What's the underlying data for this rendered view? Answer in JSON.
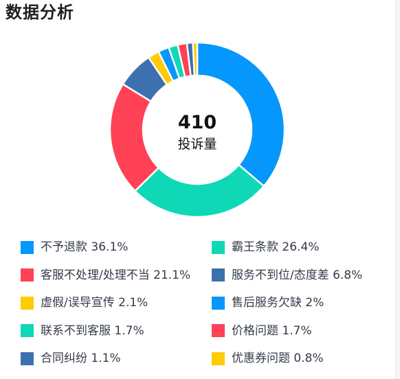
{
  "section": {
    "title": "数据分析"
  },
  "center": {
    "value": "410",
    "label": "投诉量"
  },
  "chart_data": {
    "type": "pie",
    "categories": [
      "不予退款",
      "霸王条款",
      "客服不处理/处理不当",
      "服务不到位/态度差",
      "虚假/误导宣传",
      "售后服务欠缺",
      "联系不到客服",
      "价格问题",
      "合同纠纷",
      "优惠券问题"
    ],
    "values": [
      36.1,
      26.4,
      21.1,
      6.8,
      2.1,
      2,
      1.7,
      1.7,
      1.1,
      0.8
    ],
    "colors": [
      "#0597fb",
      "#0fd8b6",
      "#ff4255",
      "#3d70ae",
      "#ffcb05",
      "#0597fb",
      "#0fd8b6",
      "#ff4255",
      "#3d70ae",
      "#ffcb05"
    ],
    "legend": [
      "不予退款 36.1%",
      "霸王条款 26.4%",
      "客服不处理/处理不当 21.1%",
      "服务不到位/态度差 6.8%",
      "虚假/误导宣传 2.1%",
      "售后服务欠缺 2%",
      "联系不到客服 1.7%",
      "价格问题 1.7%",
      "合同纠纷 1.1%",
      "优惠券问题 0.8%"
    ],
    "legend_placement": "bottom",
    "total": 410
  }
}
